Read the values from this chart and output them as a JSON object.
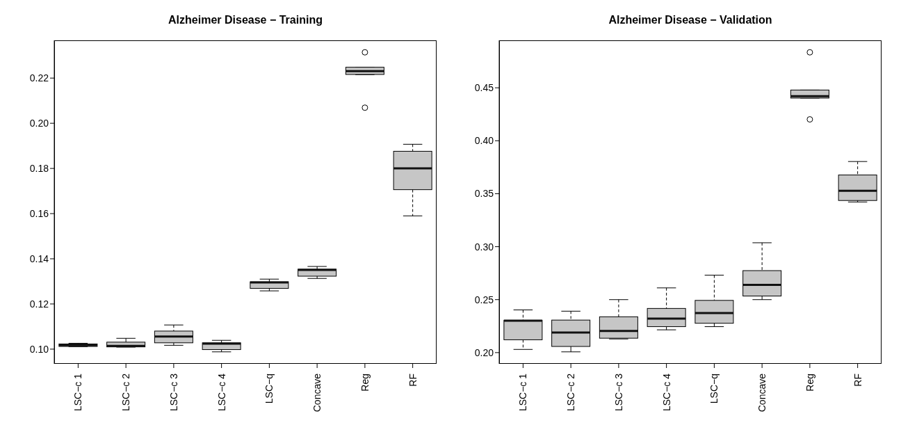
{
  "chart_data": [
    {
      "type": "box",
      "title": "Alzheimer Disease − Training",
      "color": "#c6c6c6",
      "categories": [
        "LSC−c 1",
        "LSC−c 2",
        "LSC−c 3",
        "LSC−c 4",
        "LSC−q",
        "Concave",
        "Reg",
        "RF"
      ],
      "boxes": [
        {
          "low": 0.1011,
          "q1": 0.1012,
          "median": 0.1017,
          "q3": 0.1023,
          "high": 0.1026
        },
        {
          "low": 0.1009,
          "q1": 0.101,
          "median": 0.1014,
          "q3": 0.1031,
          "high": 0.1048
        },
        {
          "low": 0.1017,
          "q1": 0.1028,
          "median": 0.1056,
          "q3": 0.108,
          "high": 0.1107
        },
        {
          "low": 0.0988,
          "q1": 0.0998,
          "median": 0.1024,
          "q3": 0.1028,
          "high": 0.1039
        },
        {
          "low": 0.1258,
          "q1": 0.1269,
          "median": 0.1295,
          "q3": 0.1298,
          "high": 0.131
        },
        {
          "low": 0.1313,
          "q1": 0.1323,
          "median": 0.1351,
          "q3": 0.1354,
          "high": 0.1366
        },
        {
          "low": 0.2215,
          "q1": 0.2216,
          "median": 0.2231,
          "q3": 0.2248,
          "high": 0.2248,
          "outliers": [
            0.2314,
            0.2069
          ]
        },
        {
          "low": 0.159,
          "q1": 0.1706,
          "median": 0.18,
          "q3": 0.1876,
          "high": 0.1907
        }
      ],
      "ylim": [
        0.0935,
        0.2367
      ],
      "yticks": [
        {
          "value": 0.1,
          "label": "0.10"
        },
        {
          "value": 0.12,
          "label": "0.12"
        },
        {
          "value": 0.14,
          "label": "0.14"
        },
        {
          "value": 0.16,
          "label": "0.16"
        },
        {
          "value": 0.18,
          "label": "0.18"
        },
        {
          "value": 0.2,
          "label": "0.20"
        },
        {
          "value": 0.22,
          "label": "0.22"
        }
      ]
    },
    {
      "type": "box",
      "title": "Alzheimer Disease − Validation",
      "color": "#c6c6c6",
      "categories": [
        "LSC−c 1",
        "LSC−c 2",
        "LSC−c 3",
        "LSC−c 4",
        "LSC−q",
        "Concave",
        "Reg",
        "RF"
      ],
      "boxes": [
        {
          "low": 0.203,
          "q1": 0.2121,
          "median": 0.2301,
          "q3": 0.2305,
          "high": 0.2403
        },
        {
          "low": 0.2007,
          "q1": 0.2058,
          "median": 0.2189,
          "q3": 0.2307,
          "high": 0.2391
        },
        {
          "low": 0.2129,
          "q1": 0.2136,
          "median": 0.2204,
          "q3": 0.2338,
          "high": 0.25
        },
        {
          "low": 0.2215,
          "q1": 0.2245,
          "median": 0.2321,
          "q3": 0.2417,
          "high": 0.2611
        },
        {
          "low": 0.2245,
          "q1": 0.2277,
          "median": 0.2373,
          "q3": 0.2493,
          "high": 0.2731
        },
        {
          "low": 0.25,
          "q1": 0.2534,
          "median": 0.264,
          "q3": 0.2774,
          "high": 0.3037
        },
        {
          "low": 0.4403,
          "q1": 0.4403,
          "median": 0.4421,
          "q3": 0.4479,
          "high": 0.4479,
          "outliers": [
            0.4835,
            0.4202
          ]
        },
        {
          "low": 0.3422,
          "q1": 0.3436,
          "median": 0.3528,
          "q3": 0.3677,
          "high": 0.3804
        }
      ],
      "ylim": [
        0.1894,
        0.4948
      ],
      "yticks": [
        {
          "value": 0.2,
          "label": "0.20"
        },
        {
          "value": 0.25,
          "label": "0.25"
        },
        {
          "value": 0.3,
          "label": "0.30"
        },
        {
          "value": 0.35,
          "label": "0.35"
        },
        {
          "value": 0.4,
          "label": "0.40"
        },
        {
          "value": 0.45,
          "label": "0.45"
        }
      ]
    }
  ]
}
